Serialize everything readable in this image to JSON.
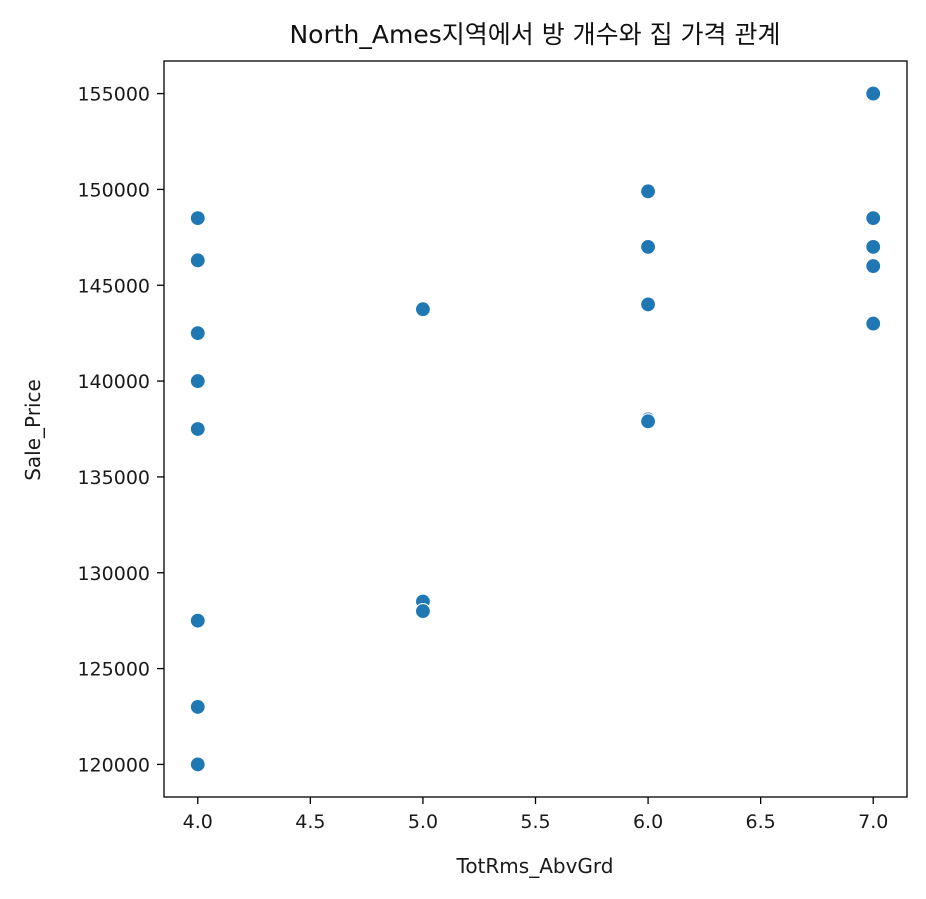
{
  "chart_data": {
    "type": "scatter",
    "title": "North_Ames지역에서 방 개수와 집 가격 관계",
    "xlabel": "TotRms_AbvGrd",
    "ylabel": "Sale_Price",
    "xlim": [
      3.85,
      7.15
    ],
    "ylim": [
      118300,
      156700
    ],
    "xticks": [
      4.0,
      4.5,
      5.0,
      5.5,
      6.0,
      6.5,
      7.0
    ],
    "yticks": [
      120000,
      125000,
      130000,
      135000,
      140000,
      145000,
      150000,
      155000
    ],
    "grid": false,
    "legend": "none",
    "marker_color": "#1f77b4",
    "series": [
      {
        "points": [
          [
            4,
            148500
          ],
          [
            4,
            146300
          ],
          [
            4,
            142500
          ],
          [
            4,
            140000
          ],
          [
            4,
            137500
          ],
          [
            4,
            127500
          ],
          [
            4,
            123000
          ],
          [
            4,
            120000
          ],
          [
            5,
            143750
          ],
          [
            5,
            128500
          ],
          [
            5,
            128000
          ],
          [
            6,
            149900
          ],
          [
            6,
            147000
          ],
          [
            6,
            144000
          ],
          [
            6,
            138000
          ],
          [
            6,
            137900
          ],
          [
            7,
            155000
          ],
          [
            7,
            148500
          ],
          [
            7,
            147000
          ],
          [
            7,
            146000
          ],
          [
            7,
            143000
          ]
        ]
      }
    ]
  }
}
